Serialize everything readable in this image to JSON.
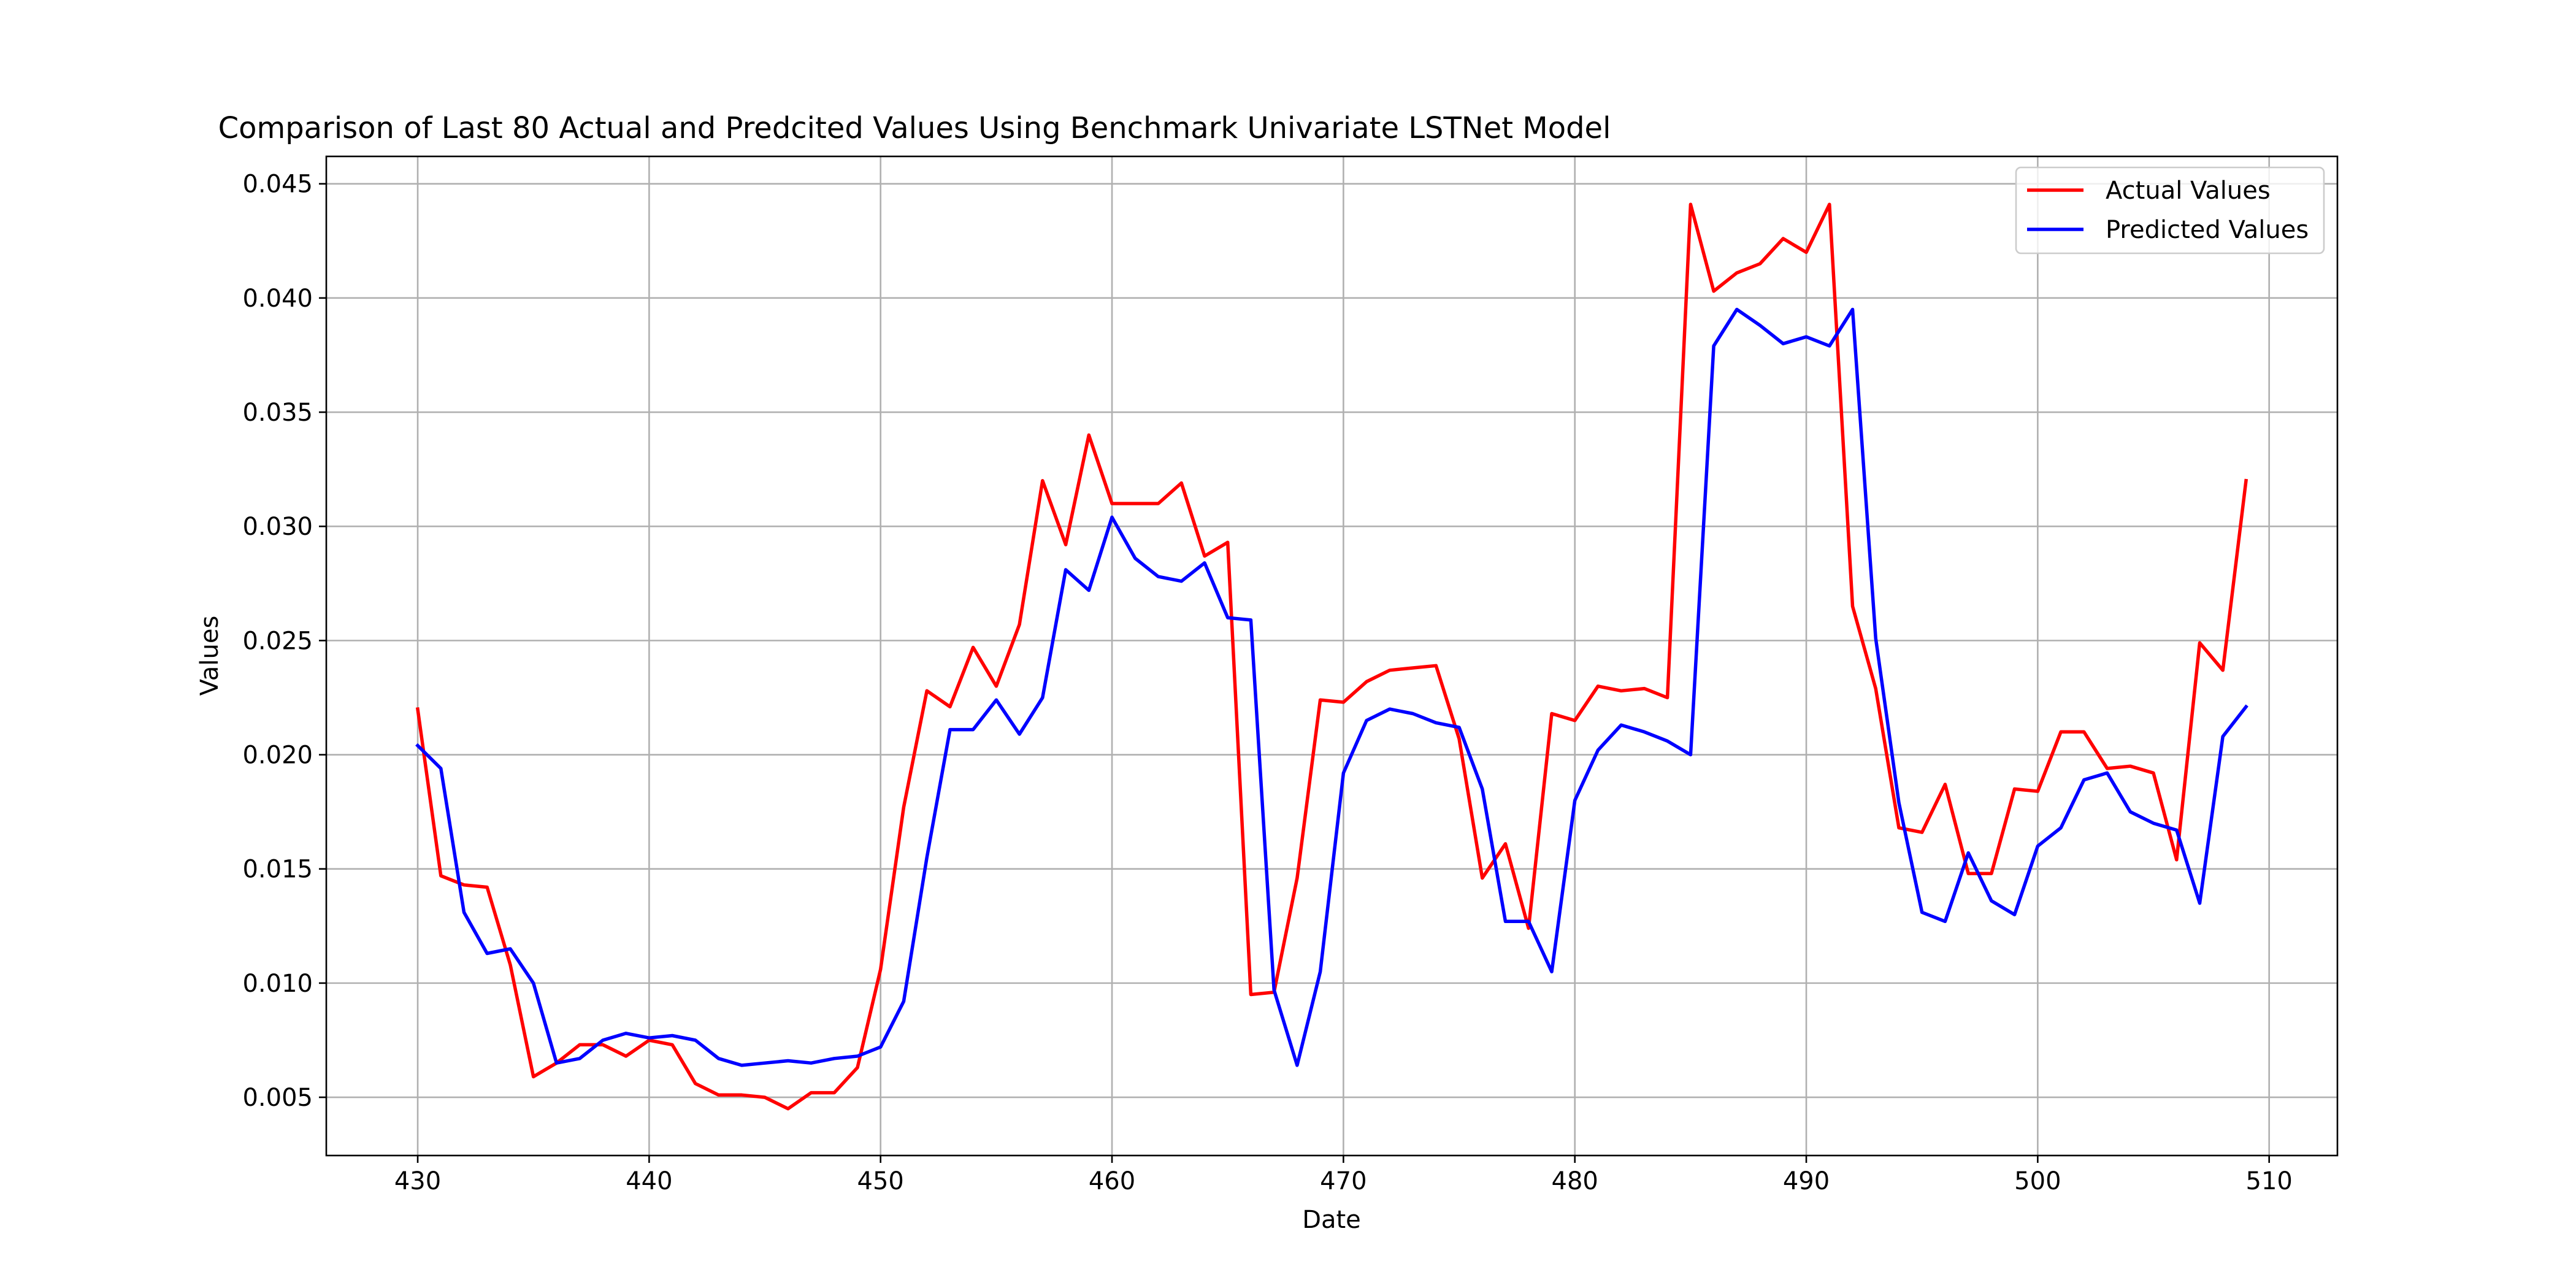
{
  "chart_data": {
    "type": "line",
    "title": "Comparison of Last 80 Actual and Predcited Values Using Benchmark Univariate LSTNet Model",
    "xlabel": "Date",
    "ylabel": "Values",
    "xlim": [
      426.05,
      512.95
    ],
    "ylim": [
      0.00245,
      0.0462
    ],
    "xticks": [
      430,
      440,
      450,
      460,
      470,
      480,
      490,
      500,
      510
    ],
    "yticks": [
      0.005,
      0.01,
      0.015,
      0.02,
      0.025,
      0.03,
      0.035,
      0.04,
      0.045
    ],
    "ytick_labels": [
      "0.005",
      "0.010",
      "0.015",
      "0.020",
      "0.025",
      "0.030",
      "0.035",
      "0.040",
      "0.045"
    ],
    "grid": true,
    "legend_position": "top-right",
    "x": [
      430,
      431,
      432,
      433,
      434,
      435,
      436,
      437,
      438,
      439,
      440,
      441,
      442,
      443,
      444,
      445,
      446,
      447,
      448,
      449,
      450,
      451,
      452,
      453,
      454,
      455,
      456,
      457,
      458,
      459,
      460,
      461,
      462,
      463,
      464,
      465,
      466,
      467,
      468,
      469,
      470,
      471,
      472,
      473,
      474,
      475,
      476,
      477,
      478,
      479,
      480,
      481,
      482,
      483,
      484,
      485,
      486,
      487,
      488,
      489,
      490,
      491,
      492,
      493,
      494,
      495,
      496,
      497,
      498,
      499,
      500,
      501,
      502,
      503,
      504,
      505,
      506,
      507,
      508,
      509
    ],
    "series": [
      {
        "name": "Actual Values",
        "color": "#ff0000",
        "values": [
          0.022,
          0.0147,
          0.0143,
          0.0142,
          0.0108,
          0.0059,
          0.0065,
          0.0073,
          0.0073,
          0.0068,
          0.0075,
          0.0073,
          0.0056,
          0.0051,
          0.0051,
          0.005,
          0.0045,
          0.0052,
          0.0052,
          0.0063,
          0.0106,
          0.0177,
          0.0228,
          0.0221,
          0.0247,
          0.023,
          0.0257,
          0.032,
          0.0292,
          0.034,
          0.031,
          0.031,
          0.031,
          0.0319,
          0.0287,
          0.0293,
          0.0095,
          0.0096,
          0.0146,
          0.0224,
          0.0223,
          0.0232,
          0.0237,
          0.0238,
          0.0239,
          0.0207,
          0.0146,
          0.0161,
          0.0124,
          0.0218,
          0.0215,
          0.023,
          0.0228,
          0.0229,
          0.0225,
          0.0441,
          0.0403,
          0.0411,
          0.0415,
          0.0426,
          0.042,
          0.0441,
          0.0265,
          0.0229,
          0.0168,
          0.0166,
          0.0187,
          0.0148,
          0.0148,
          0.0185,
          0.0184,
          0.021,
          0.021,
          0.0194,
          0.0195,
          0.0192,
          0.0154,
          0.0249,
          0.0237,
          0.032
        ]
      },
      {
        "name": "Predicted Values",
        "color": "#0000ff",
        "values": [
          0.0204,
          0.0194,
          0.0131,
          0.0113,
          0.0115,
          0.01,
          0.0065,
          0.0067,
          0.0075,
          0.0078,
          0.0076,
          0.0077,
          0.0075,
          0.0067,
          0.0064,
          0.0065,
          0.0066,
          0.0065,
          0.0067,
          0.0068,
          0.0072,
          0.0092,
          0.0155,
          0.0211,
          0.0211,
          0.0224,
          0.0209,
          0.0225,
          0.0281,
          0.0272,
          0.0304,
          0.0286,
          0.0278,
          0.0276,
          0.0284,
          0.026,
          0.0259,
          0.0097,
          0.0064,
          0.0105,
          0.0192,
          0.0215,
          0.022,
          0.0218,
          0.0214,
          0.0212,
          0.0185,
          0.0127,
          0.0127,
          0.0105,
          0.018,
          0.0202,
          0.0213,
          0.021,
          0.0206,
          0.02,
          0.0379,
          0.0395,
          0.0388,
          0.038,
          0.0383,
          0.0379,
          0.0395,
          0.0251,
          0.0179,
          0.0131,
          0.0127,
          0.0157,
          0.0136,
          0.013,
          0.016,
          0.0168,
          0.0189,
          0.0192,
          0.0175,
          0.017,
          0.0167,
          0.0135,
          0.0208,
          0.0221
        ]
      }
    ]
  }
}
